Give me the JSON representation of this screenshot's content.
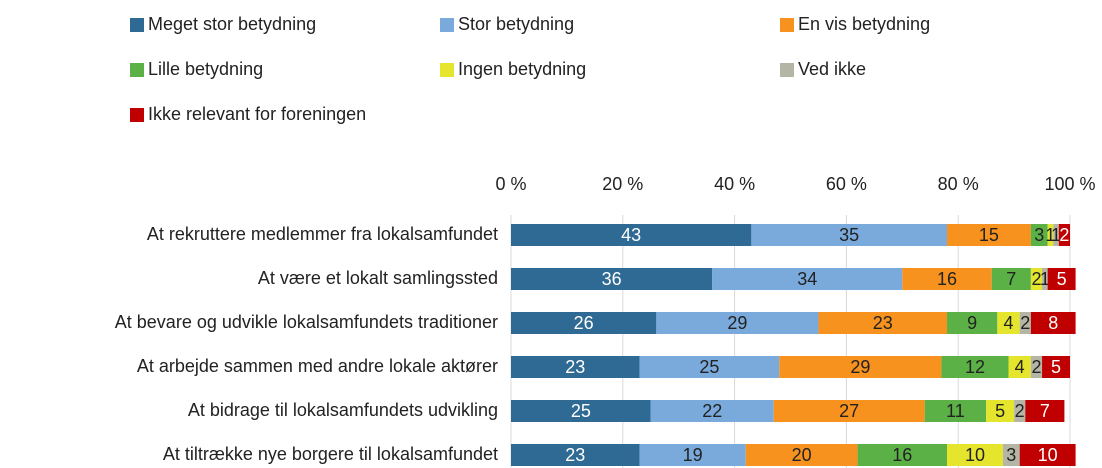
{
  "chart_data": {
    "type": "stacked-bar-horizontal",
    "categories": [
      "At rekruttere medlemmer fra lokalsamfundet",
      "At være et lokalt samlingssted",
      "At bevare og udvikle lokalsamfundets traditioner",
      "At arbejde sammen med andre lokale aktører",
      "At bidrage til lokalsamfundets udvikling",
      "At tiltrække nye borgere til lokalsamfundet"
    ],
    "series": [
      {
        "name": "Meget stor betydning",
        "color": "#2e6a94",
        "values": [
          43,
          36,
          26,
          23,
          25,
          23
        ]
      },
      {
        "name": "Stor betydning",
        "color": "#7aaadc",
        "values": [
          35,
          34,
          29,
          25,
          22,
          19
        ]
      },
      {
        "name": "En vis betydning",
        "color": "#f7921e",
        "values": [
          15,
          16,
          23,
          29,
          27,
          20
        ]
      },
      {
        "name": "Lille betydning",
        "color": "#5bb146",
        "values": [
          3,
          7,
          9,
          12,
          11,
          16
        ]
      },
      {
        "name": "Ingen betydning",
        "color": "#e4e52c",
        "values": [
          1,
          2,
          4,
          4,
          5,
          10
        ]
      },
      {
        "name": "Ved ikke",
        "color": "#b5b5a6",
        "values": [
          1,
          1,
          2,
          2,
          2,
          3
        ]
      },
      {
        "name": "Ikke relevant for foreningen",
        "color": "#c00000",
        "values": [
          2,
          5,
          8,
          5,
          7,
          10
        ]
      }
    ],
    "xlim": [
      0,
      100
    ],
    "xticks": [
      {
        "value": 0,
        "label": "0 %"
      },
      {
        "value": 20,
        "label": "20 %"
      },
      {
        "value": 40,
        "label": "40 %"
      },
      {
        "value": 60,
        "label": "60 %"
      },
      {
        "value": 80,
        "label": "80 %"
      },
      {
        "value": 100,
        "label": "100 %"
      }
    ],
    "grid": true
  }
}
